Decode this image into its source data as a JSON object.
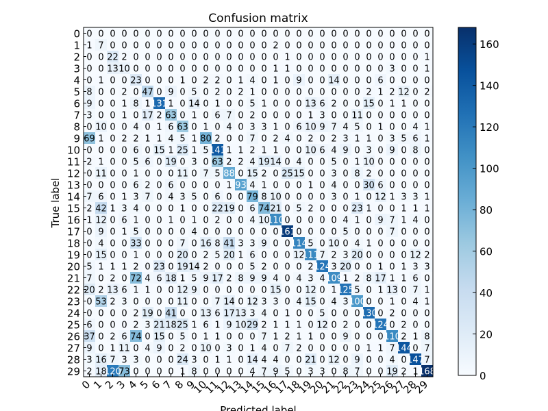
{
  "chart_data": {
    "type": "heatmap",
    "title": "Confusion matrix",
    "xlabel": "Predicted label",
    "ylabel": "True label",
    "row_labels": [
      "0",
      "1",
      "2",
      "3",
      "4",
      "5",
      "6",
      "7",
      "8",
      "9",
      "10",
      "11",
      "12",
      "13",
      "14",
      "15",
      "16",
      "17",
      "18",
      "19",
      "20",
      "21",
      "22",
      "23",
      "24",
      "25",
      "26",
      "27",
      "28",
      "29"
    ],
    "col_labels": [
      "0",
      "1",
      "2",
      "3",
      "4",
      "5",
      "6",
      "7",
      "8",
      "9",
      "10",
      "11",
      "12",
      "13",
      "14",
      "15",
      "16",
      "17",
      "18",
      "19",
      "20",
      "21",
      "22",
      "23",
      "24",
      "25",
      "26",
      "27",
      "28",
      "29"
    ],
    "colorbar": {
      "min": 0,
      "max": 168,
      "ticks": [
        0,
        20,
        40,
        60,
        80,
        100,
        120,
        140,
        160
      ]
    },
    "colors": {
      "low": "#f7fbff",
      "high": "#08306b"
    },
    "matrix": [
      [
        0,
        0,
        0,
        0,
        0,
        0,
        0,
        0,
        0,
        0,
        0,
        0,
        0,
        0,
        0,
        0,
        0,
        0,
        0,
        0,
        0,
        0,
        0,
        0,
        0,
        0,
        0,
        0,
        0,
        0
      ],
      [
        1,
        7,
        0,
        0,
        0,
        0,
        0,
        0,
        0,
        0,
        0,
        0,
        0,
        0,
        0,
        0,
        2,
        0,
        0,
        0,
        0,
        0,
        0,
        0,
        0,
        0,
        0,
        0,
        0,
        0
      ],
      [
        0,
        0,
        22,
        2,
        0,
        0,
        0,
        0,
        0,
        0,
        0,
        0,
        0,
        0,
        0,
        0,
        0,
        1,
        0,
        0,
        0,
        0,
        0,
        0,
        0,
        0,
        0,
        0,
        0,
        1
      ],
      [
        0,
        0,
        13,
        10,
        0,
        0,
        0,
        0,
        0,
        0,
        0,
        0,
        0,
        0,
        0,
        0,
        1,
        1,
        0,
        0,
        0,
        0,
        0,
        0,
        0,
        0,
        3,
        0,
        0,
        1
      ],
      [
        0,
        1,
        0,
        0,
        23,
        0,
        0,
        0,
        1,
        0,
        2,
        2,
        0,
        1,
        4,
        0,
        1,
        0,
        9,
        0,
        0,
        14,
        0,
        0,
        0,
        6,
        0,
        0,
        0,
        0
      ],
      [
        8,
        0,
        0,
        2,
        0,
        47,
        0,
        9,
        0,
        5,
        0,
        2,
        0,
        2,
        1,
        0,
        0,
        0,
        0,
        0,
        0,
        0,
        0,
        0,
        2,
        1,
        2,
        12,
        0,
        2
      ],
      [
        9,
        0,
        0,
        1,
        8,
        1,
        131,
        1,
        0,
        14,
        0,
        1,
        0,
        0,
        5,
        1,
        0,
        0,
        0,
        13,
        6,
        2,
        0,
        0,
        15,
        0,
        1,
        1,
        0,
        0
      ],
      [
        3,
        0,
        0,
        1,
        0,
        17,
        2,
        63,
        0,
        1,
        0,
        6,
        7,
        0,
        2,
        0,
        0,
        0,
        0,
        1,
        3,
        0,
        0,
        11,
        0,
        0,
        0,
        0,
        0,
        0
      ],
      [
        0,
        10,
        0,
        0,
        4,
        0,
        1,
        6,
        63,
        0,
        1,
        0,
        4,
        0,
        3,
        3,
        1,
        0,
        6,
        10,
        9,
        7,
        4,
        5,
        0,
        1,
        0,
        0,
        4,
        1
      ],
      [
        69,
        1,
        0,
        2,
        2,
        1,
        1,
        4,
        5,
        1,
        80,
        2,
        0,
        0,
        7,
        0,
        2,
        4,
        0,
        2,
        0,
        2,
        3,
        1,
        1,
        0,
        3,
        5,
        6,
        1
      ],
      [
        0,
        0,
        0,
        0,
        6,
        0,
        15,
        1,
        25,
        1,
        5,
        141,
        1,
        1,
        2,
        1,
        1,
        0,
        0,
        10,
        6,
        4,
        9,
        0,
        3,
        0,
        9,
        0,
        8,
        0
      ],
      [
        2,
        1,
        0,
        0,
        5,
        6,
        0,
        19,
        0,
        3,
        0,
        63,
        2,
        2,
        4,
        19,
        14,
        0,
        4,
        0,
        0,
        5,
        0,
        1,
        10,
        0,
        0,
        0,
        0,
        0
      ],
      [
        0,
        11,
        0,
        0,
        1,
        0,
        0,
        0,
        11,
        0,
        7,
        5,
        88,
        0,
        15,
        2,
        0,
        25,
        15,
        0,
        0,
        3,
        0,
        8,
        2,
        0,
        0,
        0,
        0,
        0
      ],
      [
        0,
        0,
        0,
        0,
        6,
        2,
        0,
        6,
        0,
        0,
        0,
        0,
        1,
        93,
        4,
        1,
        0,
        0,
        0,
        1,
        0,
        4,
        0,
        0,
        30,
        6,
        0,
        0,
        0,
        0
      ],
      [
        7,
        6,
        0,
        1,
        3,
        7,
        0,
        4,
        3,
        5,
        0,
        6,
        0,
        0,
        79,
        8,
        10,
        0,
        0,
        0,
        0,
        3,
        0,
        1,
        0,
        12,
        1,
        3,
        3,
        1
      ],
      [
        2,
        42,
        1,
        3,
        4,
        0,
        0,
        0,
        1,
        0,
        0,
        22,
        19,
        0,
        6,
        74,
        21,
        0,
        5,
        2,
        0,
        0,
        0,
        23,
        1,
        0,
        0,
        1,
        1,
        1
      ],
      [
        1,
        12,
        0,
        6,
        1,
        0,
        0,
        1,
        0,
        1,
        0,
        2,
        0,
        0,
        4,
        10,
        110,
        0,
        0,
        0,
        0,
        0,
        4,
        1,
        0,
        9,
        7,
        1,
        4,
        0
      ],
      [
        0,
        9,
        0,
        1,
        5,
        0,
        0,
        0,
        0,
        4,
        0,
        0,
        0,
        0,
        0,
        0,
        0,
        161,
        0,
        0,
        0,
        0,
        5,
        0,
        0,
        0,
        7,
        0,
        0,
        0
      ],
      [
        0,
        4,
        0,
        0,
        33,
        0,
        0,
        0,
        7,
        0,
        16,
        8,
        41,
        3,
        3,
        9,
        0,
        0,
        114,
        5,
        0,
        10,
        0,
        4,
        1,
        0,
        0,
        0,
        0,
        0
      ],
      [
        0,
        15,
        0,
        0,
        1,
        0,
        0,
        0,
        20,
        0,
        2,
        5,
        20,
        1,
        6,
        0,
        0,
        0,
        12,
        111,
        7,
        2,
        3,
        20,
        0,
        0,
        0,
        0,
        12,
        2
      ],
      [
        5,
        1,
        1,
        1,
        2,
        0,
        23,
        0,
        19,
        14,
        2,
        0,
        0,
        0,
        5,
        2,
        0,
        0,
        0,
        2,
        124,
        3,
        20,
        0,
        0,
        1,
        0,
        1,
        3,
        3
      ],
      [
        7,
        0,
        2,
        0,
        72,
        4,
        6,
        18,
        1,
        5,
        9,
        17,
        2,
        8,
        9,
        9,
        4,
        0,
        4,
        3,
        4,
        109,
        1,
        2,
        8,
        17,
        1,
        1,
        6,
        0
      ],
      [
        20,
        2,
        13,
        6,
        1,
        1,
        0,
        0,
        12,
        9,
        0,
        0,
        0,
        0,
        0,
        0,
        15,
        0,
        0,
        12,
        0,
        1,
        125,
        5,
        0,
        1,
        13,
        0,
        7,
        1
      ],
      [
        0,
        53,
        2,
        3,
        0,
        0,
        0,
        0,
        11,
        0,
        0,
        7,
        14,
        0,
        12,
        3,
        3,
        0,
        4,
        15,
        0,
        4,
        3,
        100,
        0,
        0,
        1,
        0,
        4,
        1
      ],
      [
        0,
        0,
        0,
        0,
        2,
        19,
        0,
        41,
        0,
        0,
        13,
        6,
        17,
        13,
        3,
        4,
        0,
        1,
        0,
        0,
        5,
        0,
        0,
        0,
        130,
        0,
        2,
        0,
        0,
        0
      ],
      [
        6,
        0,
        0,
        0,
        2,
        3,
        21,
        18,
        25,
        1,
        6,
        1,
        9,
        10,
        29,
        2,
        1,
        1,
        1,
        0,
        12,
        0,
        2,
        0,
        0,
        124,
        0,
        2,
        0,
        0
      ],
      [
        37,
        0,
        2,
        6,
        74,
        0,
        15,
        0,
        5,
        0,
        1,
        1,
        0,
        0,
        0,
        7,
        1,
        2,
        1,
        1,
        0,
        0,
        9,
        0,
        0,
        0,
        110,
        2,
        1,
        8
      ],
      [
        9,
        0,
        1,
        11,
        0,
        4,
        9,
        0,
        2,
        0,
        10,
        0,
        3,
        0,
        1,
        4,
        0,
        7,
        2,
        0,
        0,
        0,
        0,
        0,
        1,
        1,
        7,
        144,
        0,
        7
      ],
      [
        3,
        16,
        7,
        3,
        3,
        0,
        0,
        0,
        24,
        3,
        0,
        1,
        1,
        0,
        14,
        4,
        4,
        0,
        0,
        21,
        0,
        12,
        0,
        9,
        0,
        0,
        4,
        0,
        147,
        7
      ],
      [
        2,
        18,
        120,
        73,
        0,
        0,
        0,
        0,
        1,
        8,
        0,
        0,
        0,
        0,
        4,
        7,
        9,
        5,
        0,
        3,
        3,
        0,
        8,
        7,
        0,
        0,
        19,
        2,
        1,
        168
      ]
    ]
  }
}
